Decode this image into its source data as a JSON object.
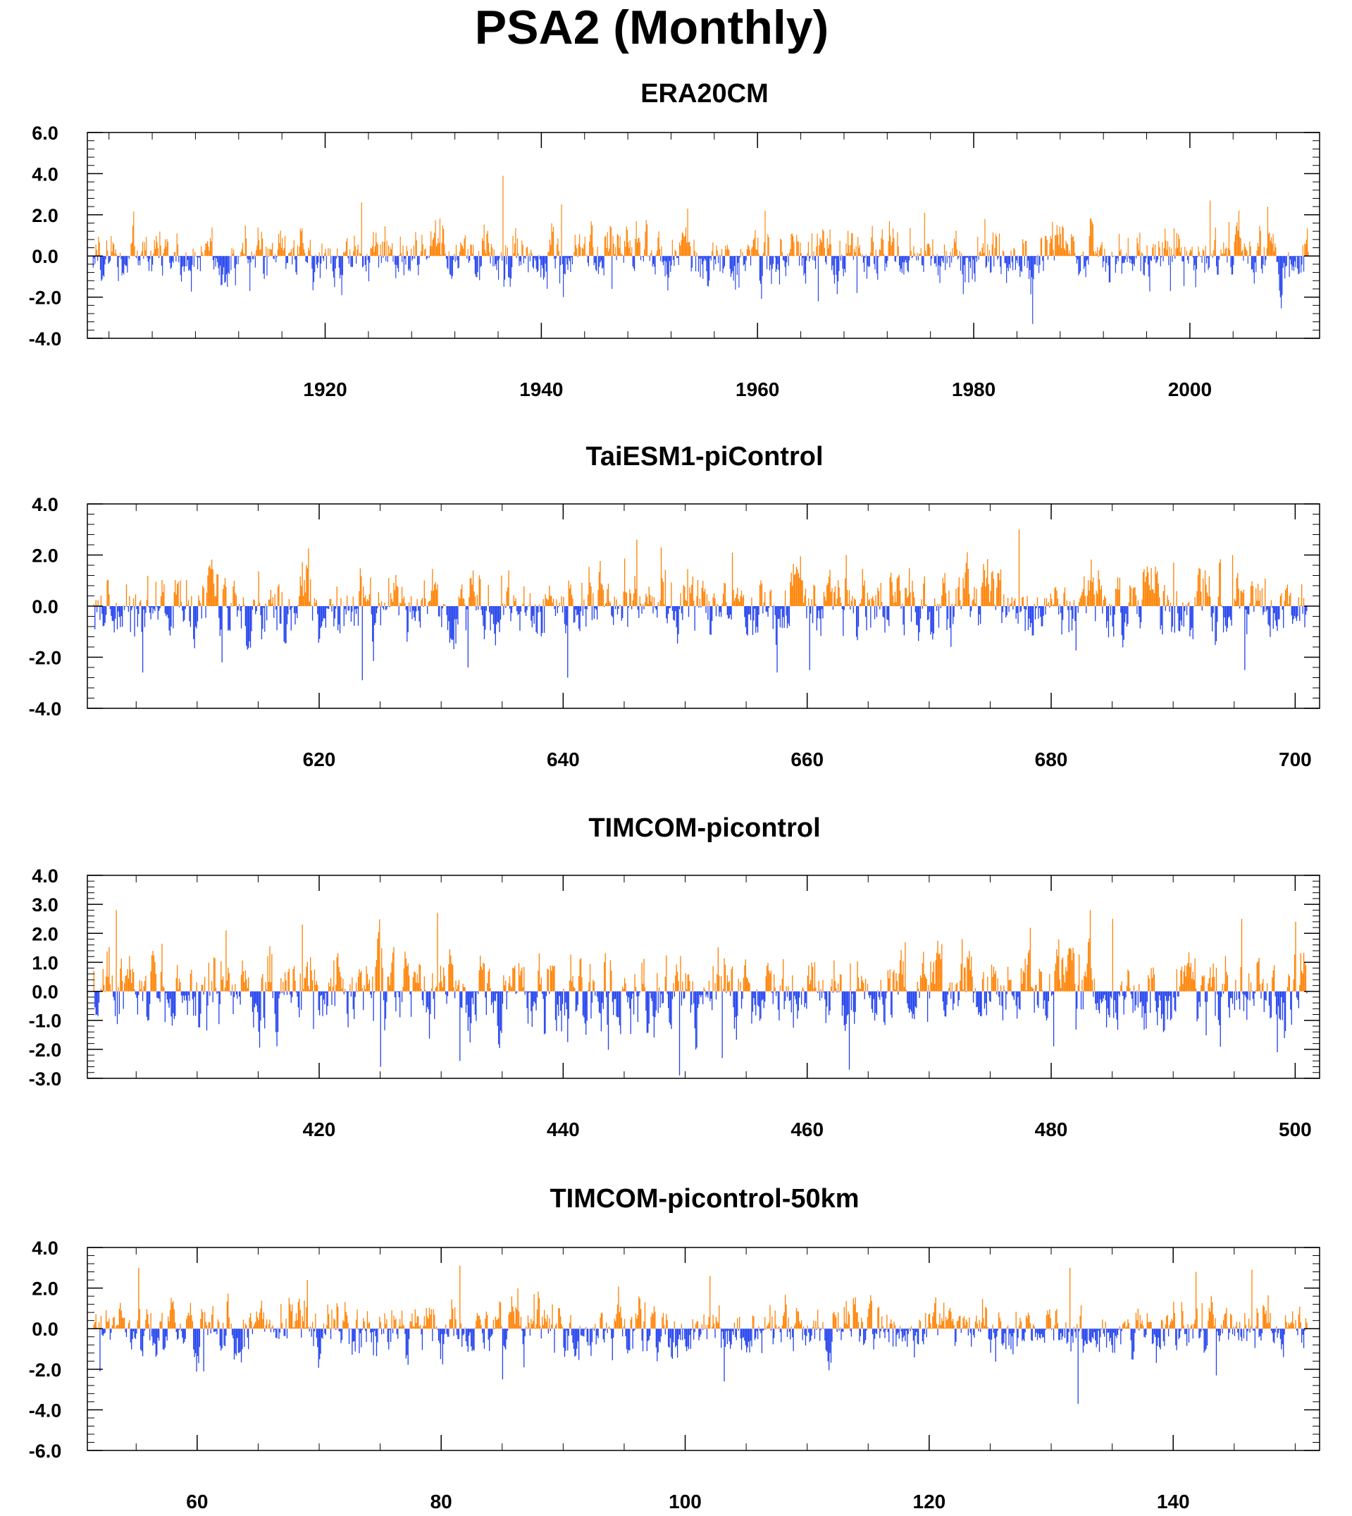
{
  "title": "PSA2 (Monthly)",
  "colors": {
    "positive": "#ff8000",
    "negative": "#2040ee",
    "axis": "#000000",
    "background": "#ffffff"
  },
  "chart_data": [
    {
      "type": "bar",
      "title": "ERA20CM",
      "x_range": [
        1898,
        2012
      ],
      "ylim": [
        -4,
        6
      ],
      "ytick_values": [
        -4,
        -2,
        0,
        2,
        4,
        6
      ],
      "ytick_labels": [
        "-4.0",
        "-2.0",
        "0.0",
        "2.0",
        "4.0",
        "6.0"
      ],
      "ytick_minor_step": 0.4,
      "xtick_values": [
        1920,
        1940,
        1960,
        1980,
        2000
      ],
      "xtick_labels": [
        "1920",
        "1940",
        "1960",
        "1980",
        "2000"
      ],
      "xtick_minor_step": 4,
      "values_per_unit": 12,
      "series_values": [
        [
          1923.3,
          2.6
        ],
        [
          1936.4,
          3.9
        ],
        [
          1941.8,
          2.5
        ],
        [
          1953.5,
          2.3
        ],
        [
          1960.7,
          2.2
        ],
        [
          1975.4,
          2.1
        ],
        [
          1981.0,
          1.8
        ],
        [
          2001.8,
          2.7
        ],
        [
          2004.5,
          2.2
        ],
        [
          2007.2,
          2.4
        ],
        [
          1913.0,
          -1.7
        ],
        [
          1921.5,
          -1.9
        ],
        [
          1942.0,
          -2.0
        ],
        [
          1946.5,
          -1.6
        ],
        [
          1965.6,
          -2.2
        ],
        [
          1969.2,
          -1.8
        ],
        [
          1985.4,
          -3.3
        ],
        [
          1998.2,
          -1.7
        ],
        [
          2008.5,
          -1.9
        ]
      ]
    },
    {
      "type": "bar",
      "title": "TaiESM1-piControl",
      "x_range": [
        601,
        702
      ],
      "ylim": [
        -4,
        4
      ],
      "ytick_values": [
        -4,
        -2,
        0,
        2,
        4
      ],
      "ytick_labels": [
        "-4.0",
        "-2.0",
        "0.0",
        "2.0",
        "4.0"
      ],
      "ytick_minor_step": 0.4,
      "xtick_values": [
        620,
        640,
        660,
        680,
        700
      ],
      "xtick_labels": [
        "620",
        "640",
        "660",
        "680",
        "700"
      ],
      "xtick_minor_step": 5,
      "values_per_unit": 12,
      "series_values": [
        [
          646.0,
          2.6
        ],
        [
          648.0,
          2.3
        ],
        [
          653.8,
          2.1
        ],
        [
          663.2,
          2.0
        ],
        [
          677.3,
          3.0
        ],
        [
          694.8,
          2.0
        ],
        [
          690.0,
          1.7
        ],
        [
          605.5,
          -2.6
        ],
        [
          612.0,
          -2.2
        ],
        [
          623.5,
          -2.9
        ],
        [
          632.2,
          -2.4
        ],
        [
          640.3,
          -2.8
        ],
        [
          657.5,
          -2.6
        ],
        [
          660.2,
          -2.5
        ],
        [
          695.8,
          -2.5
        ]
      ]
    },
    {
      "type": "bar",
      "title": "TIMCOM-picontrol",
      "x_range": [
        401,
        502
      ],
      "ylim": [
        -3,
        4
      ],
      "ytick_values": [
        -3,
        -2,
        -1,
        0,
        1,
        2,
        3,
        4
      ],
      "ytick_labels": [
        "-3.0",
        "-2.0",
        "-1.0",
        "0.0",
        "1.0",
        "2.0",
        "3.0",
        "4.0"
      ],
      "ytick_minor_step": 0.2,
      "xtick_values": [
        420,
        440,
        460,
        480,
        500
      ],
      "xtick_labels": [
        "420",
        "440",
        "460",
        "480",
        "500"
      ],
      "xtick_minor_step": 5,
      "values_per_unit": 12,
      "series_values": [
        [
          403.3,
          2.8
        ],
        [
          429.7,
          2.7
        ],
        [
          483.2,
          2.8
        ],
        [
          485.0,
          2.5
        ],
        [
          495.6,
          2.5
        ],
        [
          500.0,
          2.4
        ],
        [
          412.3,
          2.1
        ],
        [
          418.6,
          2.3
        ],
        [
          431.5,
          -2.4
        ],
        [
          449.5,
          -2.9
        ],
        [
          463.4,
          -2.7
        ],
        [
          453.0,
          -2.3
        ],
        [
          425.0,
          -2.6
        ],
        [
          498.5,
          -2.1
        ],
        [
          480.2,
          -1.9
        ]
      ]
    },
    {
      "type": "bar",
      "title": "TIMCOM-picontrol-50km",
      "x_range": [
        51,
        152
      ],
      "ylim": [
        -6,
        4
      ],
      "ytick_values": [
        -6,
        -4,
        -2,
        0,
        2,
        4
      ],
      "ytick_labels": [
        "-6.0",
        "-4.0",
        "-2.0",
        "0.0",
        "2.0",
        "4.0"
      ],
      "ytick_minor_step": 0.4,
      "xtick_values": [
        60,
        80,
        100,
        120,
        140
      ],
      "xtick_labels": [
        "60",
        "80",
        "100",
        "120",
        "140"
      ],
      "xtick_minor_step": 5,
      "values_per_unit": 12,
      "series_values": [
        [
          55.2,
          3.0
        ],
        [
          81.5,
          3.1
        ],
        [
          102.0,
          2.6
        ],
        [
          131.5,
          3.0
        ],
        [
          141.8,
          2.8
        ],
        [
          146.4,
          2.9
        ],
        [
          69.0,
          2.4
        ],
        [
          52.0,
          -2.1
        ],
        [
          60.5,
          -2.1
        ],
        [
          85.0,
          -2.5
        ],
        [
          103.2,
          -2.6
        ],
        [
          132.2,
          -3.7
        ],
        [
          143.5,
          -2.3
        ],
        [
          149.0,
          -1.4
        ]
      ]
    }
  ]
}
